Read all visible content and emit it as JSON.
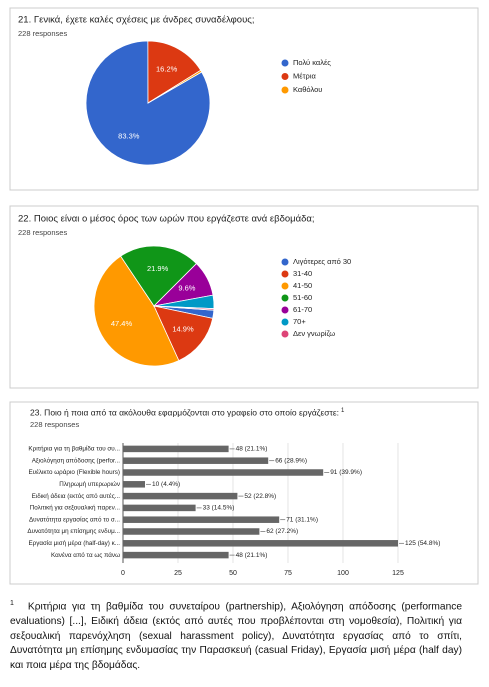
{
  "chart_data": [
    {
      "type": "pie",
      "title": "21. Γενικά, έχετε καλές σχέσεις με άνδρες συναδέλφους;",
      "subtitle": "228 responses",
      "categories": [
        "Πολύ καλές",
        "Μέτρια",
        "Καθόλου"
      ],
      "values": [
        83.3,
        16.2,
        0.5
      ],
      "value_labels": [
        "83.3%",
        "16.2%",
        null
      ],
      "colors": [
        "#3366cc",
        "#dc3912",
        "#ff9900"
      ]
    },
    {
      "type": "pie",
      "title": "22. Ποιος είναι ο μέσος όρος των ωρών που εργάζεστε ανά εβδομάδα;",
      "subtitle": "228 responses",
      "categories": [
        "Λιγότερες από 30",
        "31-40",
        "41-50",
        "51-60",
        "61-70",
        "70+",
        "Δεν γνωρίζω"
      ],
      "values": [
        2.2,
        14.9,
        47.4,
        21.9,
        9.6,
        3.6,
        0.4
      ],
      "value_labels": [
        null,
        "14.9%",
        "47.4%",
        "21.9%",
        "9.6%",
        null,
        null
      ],
      "colors": [
        "#3366cc",
        "#dc3912",
        "#ff9900",
        "#109618",
        "#990099",
        "#0099c6",
        "#dd4477"
      ]
    },
    {
      "type": "bar",
      "orientation": "horizontal",
      "title": "23. Ποιο ή ποια από τα ακόλουθα εφαρμόζονται στο γραφείο στο οποίο εργάζεστε:",
      "subtitle": "228 responses",
      "categories": [
        "Κριτήρια για τη βαθμίδα του συ...",
        "Αξιολόγηση απόδοσης (perfor...",
        "Ευέλικτο ωράριο (Flexible hours)",
        "Πληρωμή υπερωριών",
        "Ειδική άδεια (εκτός από αυτές...",
        "Πολιτική για σεξουαλική παρεν...",
        "Δυνατότητα εργασίας από το σ...",
        "Δυνατότητα μη επίσημης ενδυμ...",
        "Εργασία μισή μέρα (half-day) κ...",
        "Κανένα από τα ως πάνω"
      ],
      "values": [
        48,
        66,
        91,
        10,
        52,
        33,
        71,
        62,
        125,
        48
      ],
      "value_labels": [
        "48 (21.1%)",
        "66 (28.9%)",
        "91 (39.9%)",
        "10 (4.4%)",
        "52 (22.8%)",
        "33 (14.5%)",
        "71 (31.1%)",
        "62 (27.2%)",
        "125 (54.8%)",
        "48 (21.1%)"
      ],
      "color": "#666666",
      "xlim": [
        0,
        125
      ],
      "xticks": [
        0,
        25,
        50,
        75,
        100,
        125
      ],
      "grid": true
    }
  ],
  "footnote": {
    "marker": "1",
    "text": "Κριτήρια για τη βαθμίδα του συνεταίρου (partnership), Αξιολόγηση απόδοσης (performance evaluations) [...], Ειδική άδεια (εκτός από αυτές που προβλέπονται στη νομοθεσία), Πολιτική για σεξουαλική παρενόχληση (sexual harassment policy), Δυνατότητα εργασίας από το σπίτι, Δυνατότητα μη επίσημης ενδυμασίας την Παρασκευή (casual Friday), Εργασία μισή μέρα (half day) και ποια μέρα της βδομάδας."
  }
}
